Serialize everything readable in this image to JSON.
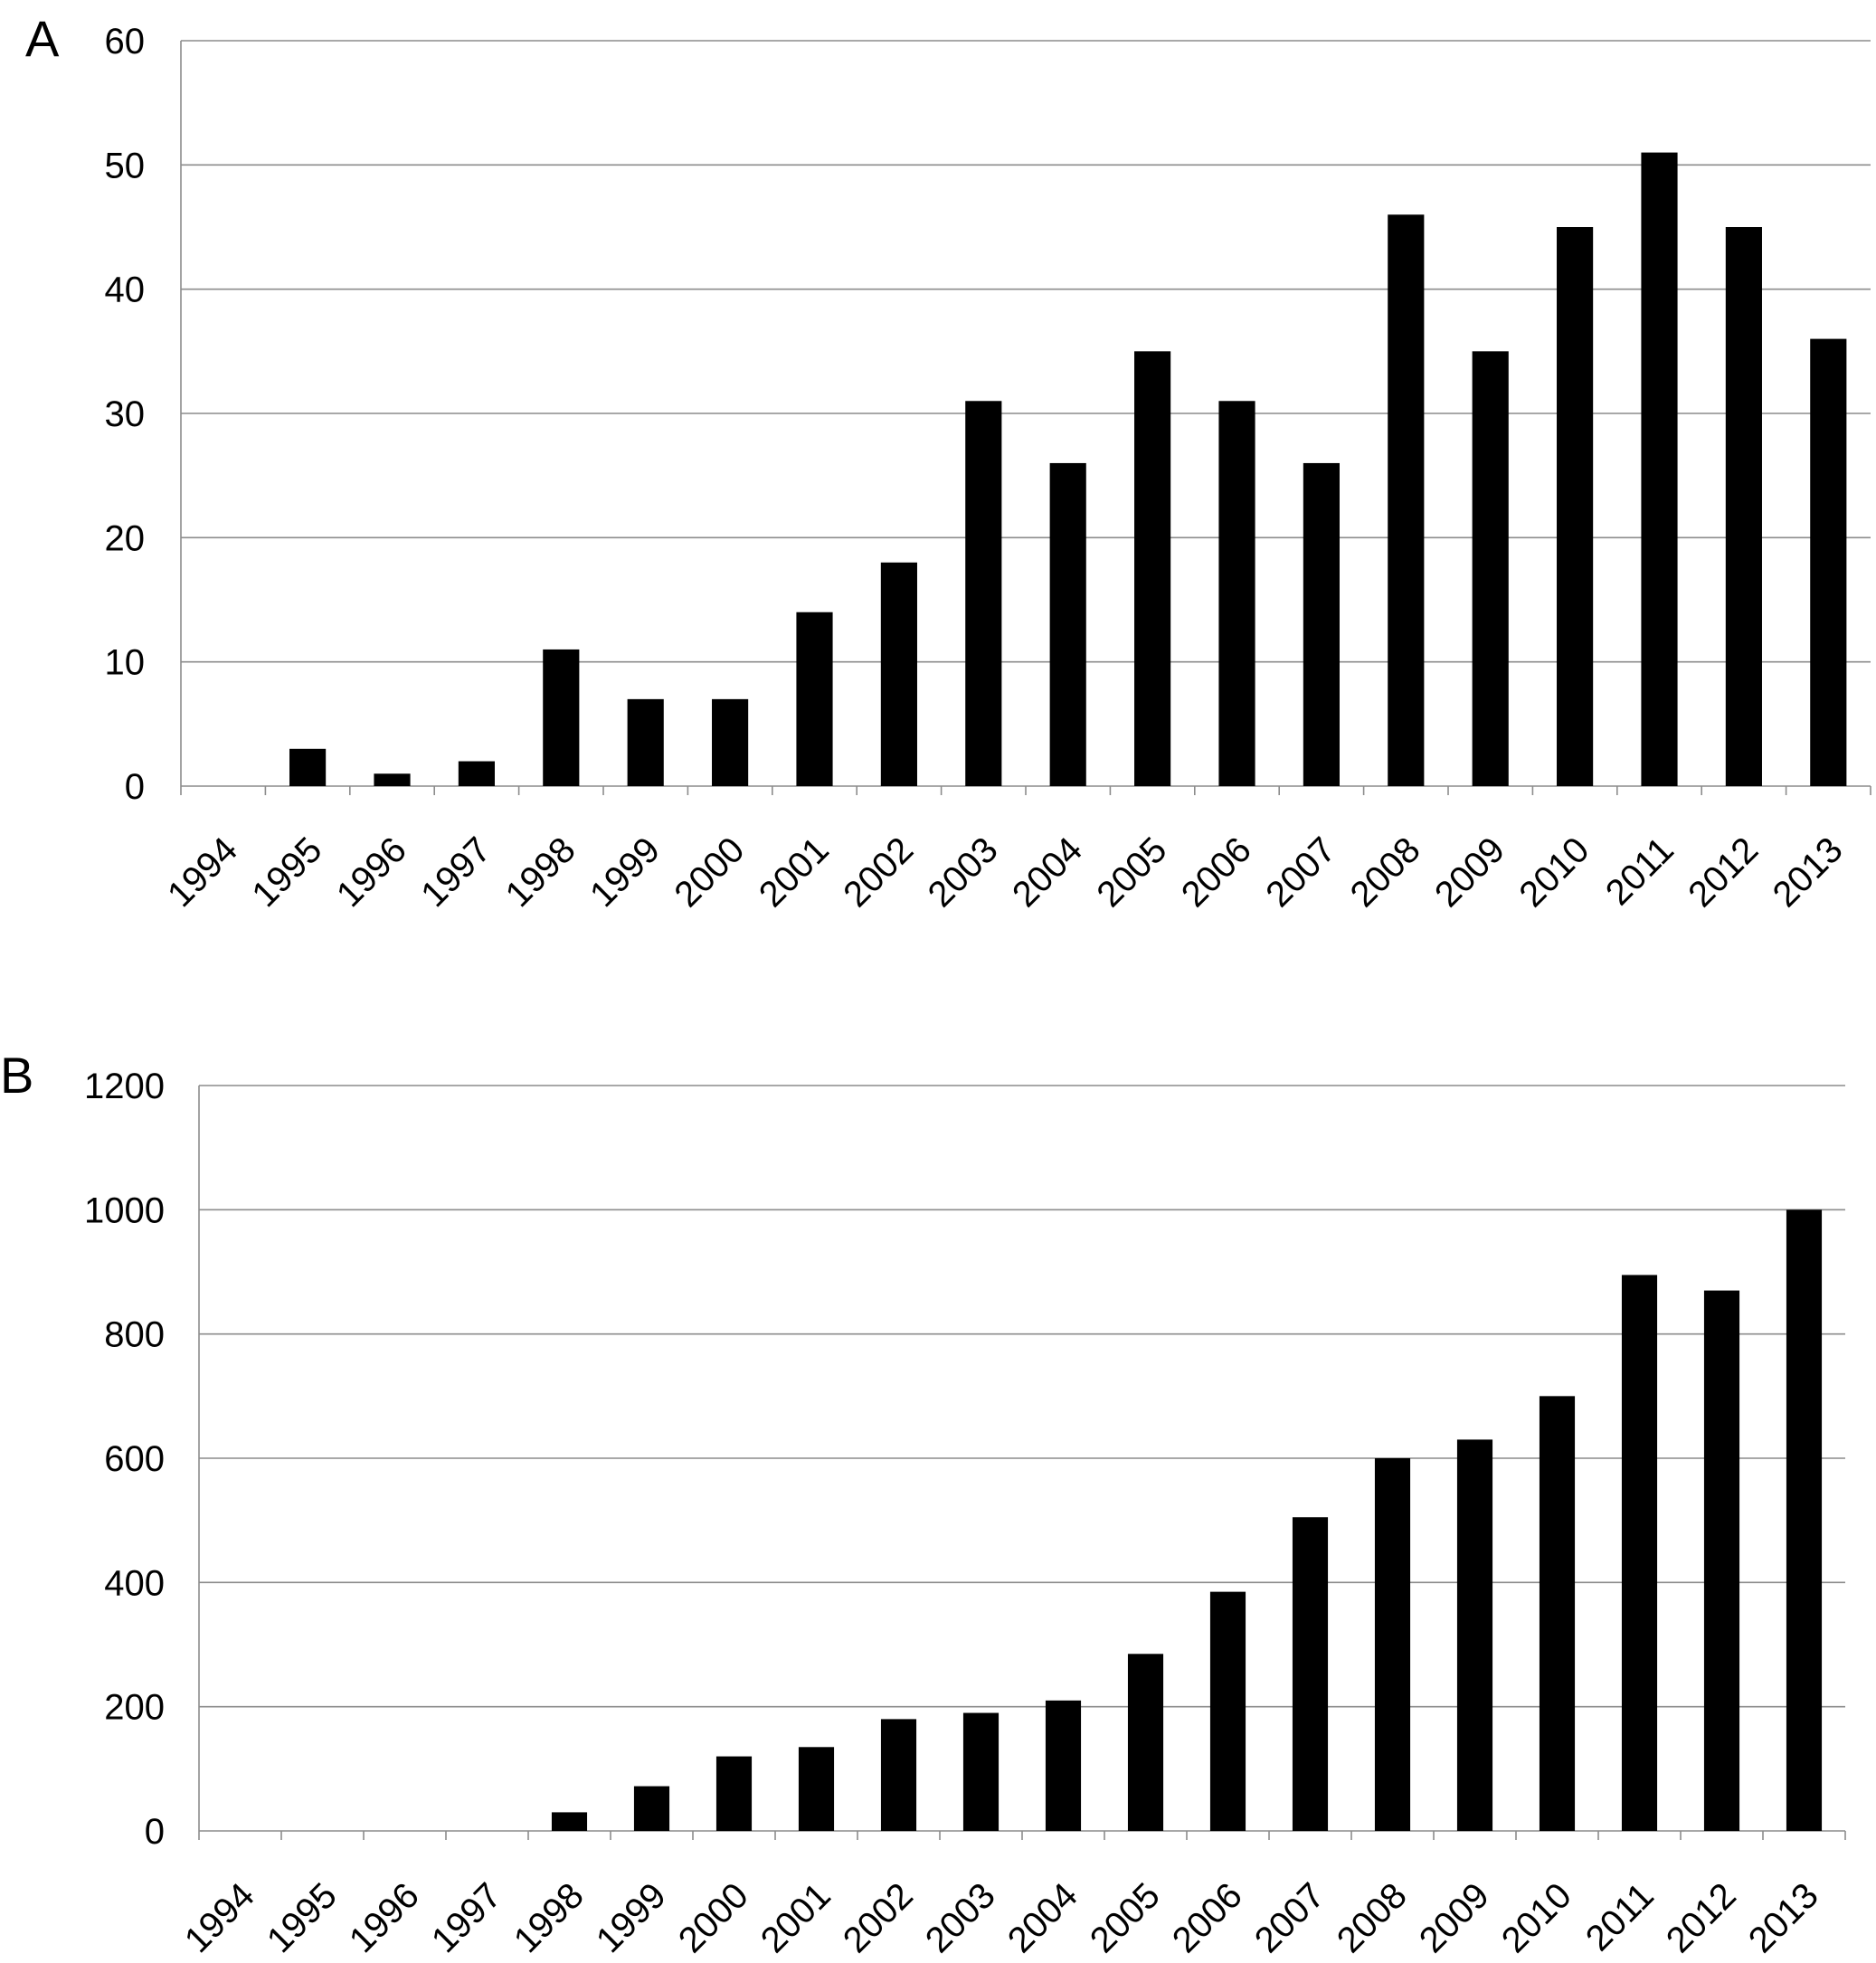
{
  "chart_data": [
    {
      "type": "bar",
      "panel_label": "A",
      "categories": [
        "1994",
        "1995",
        "1996",
        "1997",
        "1998",
        "1999",
        "2000",
        "2001",
        "2002",
        "2003",
        "2004",
        "2005",
        "2006",
        "2007",
        "2008",
        "2009",
        "2010",
        "2011",
        "2012",
        "2013"
      ],
      "values": [
        0,
        3,
        1,
        2,
        11,
        7,
        7,
        14,
        18,
        31,
        26,
        35,
        31,
        26,
        46,
        35,
        45,
        51,
        45,
        36
      ],
      "ylim": [
        0,
        60
      ],
      "yticks": [
        0,
        10,
        20,
        30,
        40,
        50,
        60
      ],
      "grid": true,
      "colors": {
        "bar": "#000000",
        "grid": "#8c8c8c"
      }
    },
    {
      "type": "bar",
      "panel_label": "B",
      "categories": [
        "1994",
        "1995",
        "1996",
        "1997",
        "1998",
        "1999",
        "2000",
        "2001",
        "2002",
        "2003",
        "2004",
        "2005",
        "2006",
        "2007",
        "2008",
        "2009",
        "2010",
        "2011",
        "2012",
        "2013"
      ],
      "values": [
        0,
        0,
        0,
        0,
        30,
        72,
        120,
        135,
        180,
        190,
        210,
        285,
        385,
        505,
        600,
        630,
        700,
        895,
        870,
        1000
      ],
      "ylim": [
        0,
        1200
      ],
      "yticks": [
        0,
        200,
        400,
        600,
        800,
        1000,
        1200
      ],
      "grid": true,
      "colors": {
        "bar": "#000000",
        "grid": "#8c8c8c"
      }
    }
  ]
}
